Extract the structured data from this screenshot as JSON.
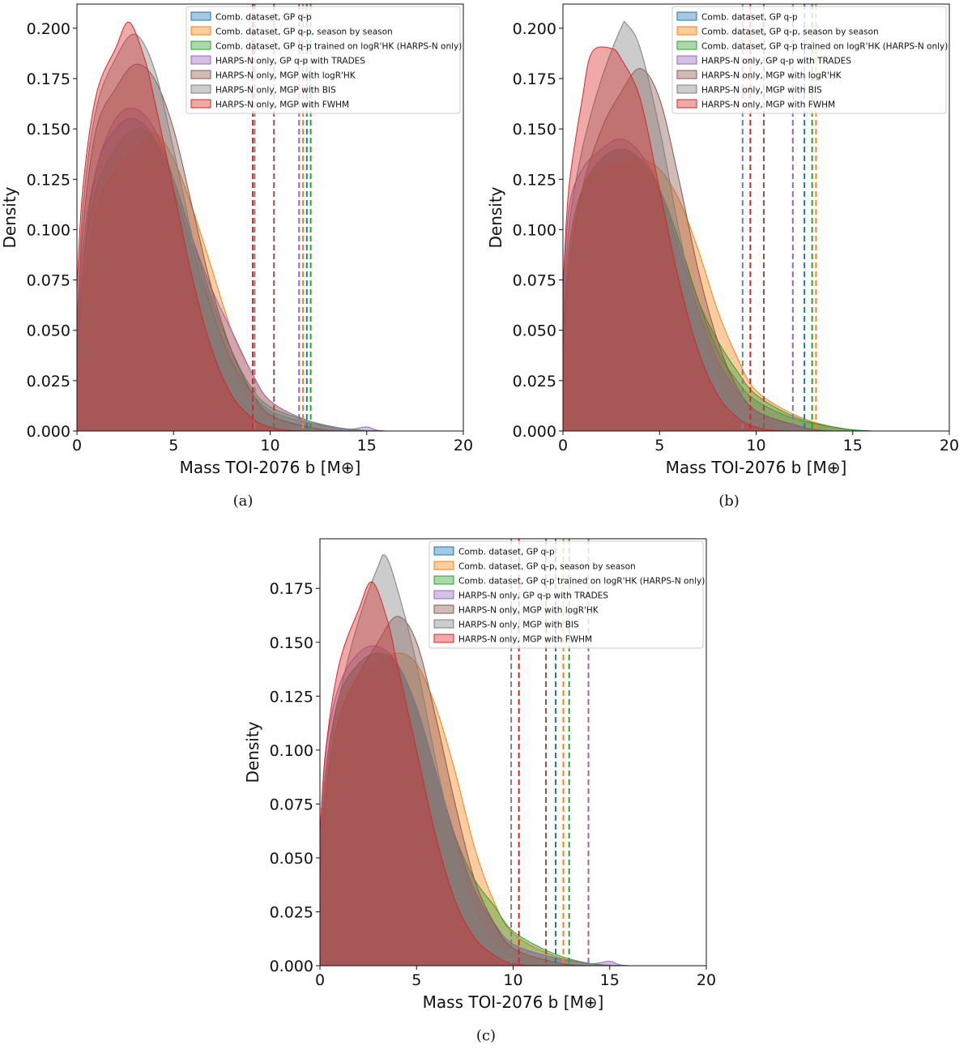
{
  "chart_data": [
    {
      "type": "area",
      "panel": "a",
      "caption": "(a)",
      "xlabel": "Mass TOI-2076 b [M⊕]",
      "ylabel": "Density",
      "xlim": [
        0,
        20
      ],
      "ylim": [
        0,
        0.212
      ],
      "xticks": [
        "0",
        "5",
        "10",
        "15",
        "20"
      ],
      "yticks": [
        "0.000",
        "0.025",
        "0.050",
        "0.075",
        "0.100",
        "0.125",
        "0.150",
        "0.175",
        "0.200"
      ],
      "legend_position": "top-right",
      "series": [
        {
          "name": "Comb. dataset, GP q-p",
          "color": "#1f77b4",
          "x": [
            0,
            0.3,
            1,
            2,
            3,
            4,
            5,
            6,
            7,
            8,
            9,
            10,
            12,
            14,
            16,
            20
          ],
          "values": [
            0.03,
            0.08,
            0.13,
            0.15,
            0.155,
            0.145,
            0.12,
            0.09,
            0.06,
            0.035,
            0.02,
            0.01,
            0.004,
            0.001,
            0.0,
            0.0
          ],
          "vline": 11.9
        },
        {
          "name": "Comb. dataset, GP q-p, season by season",
          "color": "#ff7f0e",
          "x": [
            0,
            0.3,
            1,
            2,
            3,
            4,
            5,
            6,
            7,
            8,
            9,
            10,
            12,
            14,
            16,
            20
          ],
          "values": [
            0.03,
            0.07,
            0.11,
            0.13,
            0.14,
            0.148,
            0.135,
            0.11,
            0.08,
            0.05,
            0.03,
            0.015,
            0.005,
            0.001,
            0.0,
            0.0
          ],
          "vline": 11.7
        },
        {
          "name": "Comb. dataset, GP q-p trained on logR'HK (HARPS-N only)",
          "color": "#2ca02c",
          "x": [
            0,
            0.3,
            1,
            2,
            3,
            4,
            5,
            6,
            7,
            8,
            9,
            10,
            12,
            14,
            16,
            20
          ],
          "values": [
            0.03,
            0.08,
            0.12,
            0.14,
            0.15,
            0.145,
            0.125,
            0.095,
            0.065,
            0.04,
            0.022,
            0.012,
            0.005,
            0.001,
            0.0,
            0.0
          ],
          "vline": 12.1
        },
        {
          "name": "HARPS-N only, GP q-p with TRADES",
          "color": "#9467bd",
          "x": [
            0,
            0.3,
            1,
            2,
            3,
            4,
            5,
            6,
            7,
            8,
            9,
            10,
            12,
            14,
            15,
            16,
            20
          ],
          "values": [
            0.04,
            0.09,
            0.13,
            0.155,
            0.16,
            0.15,
            0.125,
            0.095,
            0.07,
            0.05,
            0.03,
            0.015,
            0.005,
            0.001,
            0.002,
            0.0,
            0.0
          ],
          "vline": 11.5
        },
        {
          "name": "HARPS-N only, MGP with logR'HK",
          "color": "#8c564b",
          "x": [
            0,
            0.3,
            1,
            2,
            3,
            4,
            5,
            6,
            7,
            8,
            9,
            10,
            12,
            14,
            20
          ],
          "values": [
            0.05,
            0.1,
            0.15,
            0.17,
            0.182,
            0.175,
            0.15,
            0.11,
            0.07,
            0.04,
            0.02,
            0.008,
            0.002,
            0.0,
            0.0
          ],
          "vline": 10.2
        },
        {
          "name": "HARPS-N only, MGP with BIS",
          "color": "#7f7f7f",
          "x": [
            0,
            0.3,
            1,
            2,
            3,
            4,
            5,
            6,
            7,
            8,
            9,
            10,
            12,
            14,
            20
          ],
          "values": [
            0.05,
            0.11,
            0.16,
            0.185,
            0.197,
            0.18,
            0.14,
            0.095,
            0.055,
            0.03,
            0.013,
            0.005,
            0.001,
            0.0,
            0.0
          ],
          "vline": 9.2
        },
        {
          "name": "HARPS-N only, MGP with FWHM",
          "color": "#d62728",
          "x": [
            0,
            0.3,
            1,
            2,
            2.7,
            3.5,
            4,
            5,
            6,
            7,
            8,
            9,
            10,
            12,
            20
          ],
          "values": [
            0.07,
            0.12,
            0.167,
            0.19,
            0.203,
            0.185,
            0.165,
            0.12,
            0.075,
            0.04,
            0.018,
            0.007,
            0.002,
            0.0,
            0.0
          ],
          "vline": 9.1
        }
      ]
    },
    {
      "type": "area",
      "panel": "b",
      "caption": "(b)",
      "xlabel": "Mass TOI-2076 b [M⊕]",
      "ylabel": "Density",
      "xlim": [
        0,
        20
      ],
      "ylim": [
        0,
        0.212
      ],
      "xticks": [
        "0",
        "5",
        "10",
        "15",
        "20"
      ],
      "yticks": [
        "0.000",
        "0.025",
        "0.050",
        "0.075",
        "0.100",
        "0.125",
        "0.150",
        "0.175",
        "0.200"
      ],
      "legend_position": "top-right",
      "series": [
        {
          "name": "Comb. dataset, GP q-p",
          "color": "#1f77b4",
          "x": [
            0,
            0.3,
            1,
            2,
            3,
            4,
            5,
            6,
            7,
            8,
            9,
            10,
            12,
            14,
            16,
            20
          ],
          "values": [
            0.04,
            0.09,
            0.12,
            0.135,
            0.14,
            0.135,
            0.12,
            0.095,
            0.065,
            0.04,
            0.025,
            0.015,
            0.006,
            0.002,
            0.0,
            0.0
          ],
          "vline": 12.5
        },
        {
          "name": "Comb. dataset, GP q-p, season by season",
          "color": "#ff7f0e",
          "x": [
            0,
            0.3,
            1,
            2,
            3,
            4,
            5,
            6,
            7,
            8,
            9,
            10,
            12,
            14,
            16,
            20
          ],
          "values": [
            0.04,
            0.09,
            0.12,
            0.13,
            0.133,
            0.135,
            0.13,
            0.115,
            0.09,
            0.06,
            0.037,
            0.02,
            0.008,
            0.002,
            0.0,
            0.0
          ],
          "vline": 13.1
        },
        {
          "name": "Comb. dataset, GP q-p trained on logR'HK (HARPS-N only)",
          "color": "#2ca02c",
          "x": [
            0,
            0.3,
            1,
            2,
            3,
            4,
            5,
            6,
            7,
            8,
            9,
            10,
            12,
            14,
            16,
            20
          ],
          "values": [
            0.04,
            0.09,
            0.12,
            0.135,
            0.14,
            0.135,
            0.12,
            0.095,
            0.065,
            0.045,
            0.03,
            0.018,
            0.007,
            0.002,
            0.0,
            0.0
          ],
          "vline": 12.9
        },
        {
          "name": "HARPS-N only, GP q-p with TRADES",
          "color": "#9467bd",
          "x": [
            0,
            0.3,
            1,
            2,
            3,
            4,
            5,
            6,
            7,
            8,
            9,
            10,
            12,
            14,
            20
          ],
          "values": [
            0.06,
            0.11,
            0.13,
            0.14,
            0.145,
            0.138,
            0.12,
            0.09,
            0.06,
            0.035,
            0.02,
            0.01,
            0.003,
            0.0,
            0.0
          ],
          "vline": 11.9
        },
        {
          "name": "HARPS-N only, MGP with logR'HK",
          "color": "#8c564b",
          "x": [
            0,
            0.3,
            1,
            2,
            3,
            4,
            5,
            6,
            7,
            8,
            9,
            10,
            12,
            14,
            20
          ],
          "values": [
            0.04,
            0.08,
            0.12,
            0.15,
            0.168,
            0.18,
            0.165,
            0.125,
            0.08,
            0.045,
            0.022,
            0.01,
            0.003,
            0.0,
            0.0
          ],
          "vline": 10.4
        },
        {
          "name": "HARPS-N only, MGP with BIS",
          "color": "#7f7f7f",
          "x": [
            0,
            0.3,
            1,
            2,
            3,
            3.3,
            4,
            5,
            6,
            7,
            8,
            9,
            10,
            12,
            20
          ],
          "values": [
            0.05,
            0.1,
            0.14,
            0.175,
            0.2,
            0.202,
            0.19,
            0.15,
            0.1,
            0.055,
            0.025,
            0.01,
            0.003,
            0.0,
            0.0
          ],
          "vline": 9.3
        },
        {
          "name": "HARPS-N only, MGP with FWHM",
          "color": "#d62728",
          "x": [
            0,
            0.3,
            1,
            1.5,
            2.5,
            3,
            4,
            5,
            6,
            7,
            8,
            9,
            10,
            12,
            20
          ],
          "values": [
            0.07,
            0.12,
            0.165,
            0.188,
            0.19,
            0.185,
            0.165,
            0.12,
            0.075,
            0.04,
            0.018,
            0.007,
            0.002,
            0.0,
            0.0
          ],
          "vline": 9.7
        }
      ]
    },
    {
      "type": "area",
      "panel": "c",
      "caption": "(c)",
      "xlabel": "Mass TOI-2076 b [M⊕]",
      "ylabel": "Density",
      "xlim": [
        0,
        20
      ],
      "ylim": [
        0,
        0.198
      ],
      "xticks": [
        "0",
        "5",
        "10",
        "15",
        "20"
      ],
      "yticks": [
        "0.000",
        "0.025",
        "0.050",
        "0.075",
        "0.100",
        "0.125",
        "0.150",
        "0.175"
      ],
      "legend_position": "top-right",
      "series": [
        {
          "name": "Comb. dataset, GP q-p",
          "color": "#1f77b4",
          "x": [
            0,
            0.3,
            1,
            2,
            3,
            4,
            5,
            6,
            7,
            8,
            9,
            10,
            12,
            14,
            16,
            20
          ],
          "values": [
            0.05,
            0.09,
            0.125,
            0.14,
            0.145,
            0.14,
            0.12,
            0.09,
            0.06,
            0.035,
            0.02,
            0.01,
            0.004,
            0.001,
            0.0,
            0.0
          ],
          "vline": 12.2
        },
        {
          "name": "Comb. dataset, GP q-p, season by season",
          "color": "#ff7f0e",
          "x": [
            0,
            0.3,
            1,
            2,
            3,
            4,
            5,
            6,
            7,
            8,
            9,
            10,
            12,
            14,
            16,
            20
          ],
          "values": [
            0.05,
            0.09,
            0.12,
            0.135,
            0.14,
            0.145,
            0.14,
            0.12,
            0.09,
            0.055,
            0.03,
            0.015,
            0.005,
            0.001,
            0.0,
            0.0
          ],
          "vline": 12.6
        },
        {
          "name": "Comb. dataset, GP q-p trained on logR'HK (HARPS-N only)",
          "color": "#2ca02c",
          "x": [
            0,
            0.3,
            1,
            2,
            3,
            4,
            5,
            6,
            7,
            8,
            9,
            10,
            12,
            14,
            16,
            20
          ],
          "values": [
            0.05,
            0.09,
            0.125,
            0.14,
            0.145,
            0.14,
            0.12,
            0.09,
            0.06,
            0.04,
            0.028,
            0.016,
            0.006,
            0.001,
            0.0,
            0.0
          ],
          "vline": 12.9
        },
        {
          "name": "HARPS-N only, GP q-p with TRADES",
          "color": "#9467bd",
          "x": [
            0,
            0.3,
            1,
            2,
            3,
            4,
            5,
            6,
            7,
            8,
            9,
            10,
            12,
            14,
            15,
            16,
            20
          ],
          "values": [
            0.06,
            0.1,
            0.13,
            0.145,
            0.148,
            0.14,
            0.12,
            0.09,
            0.06,
            0.035,
            0.02,
            0.01,
            0.004,
            0.001,
            0.002,
            0.0,
            0.0
          ],
          "vline": 13.9
        },
        {
          "name": "HARPS-N only, MGP with logR'HK",
          "color": "#8c564b",
          "x": [
            0,
            0.3,
            1,
            2,
            3,
            4,
            5,
            6,
            7,
            8,
            9,
            10,
            12,
            14,
            20
          ],
          "values": [
            0.04,
            0.08,
            0.115,
            0.135,
            0.15,
            0.162,
            0.15,
            0.115,
            0.075,
            0.04,
            0.02,
            0.008,
            0.002,
            0.0,
            0.0
          ],
          "vline": 11.7
        },
        {
          "name": "HARPS-N only, MGP with BIS",
          "color": "#7f7f7f",
          "x": [
            0,
            0.3,
            1,
            2,
            3,
            3.4,
            4,
            5,
            6,
            7,
            8,
            9,
            10,
            12,
            20
          ],
          "values": [
            0.05,
            0.09,
            0.125,
            0.16,
            0.185,
            0.19,
            0.175,
            0.14,
            0.095,
            0.055,
            0.025,
            0.01,
            0.003,
            0.0,
            0.0
          ],
          "vline": 9.9
        },
        {
          "name": "HARPS-N only, MGP with FWHM",
          "color": "#d62728",
          "x": [
            0,
            0.3,
            1,
            2,
            2.7,
            3.5,
            4,
            5,
            6,
            7,
            8,
            9,
            10,
            12,
            20
          ],
          "values": [
            0.06,
            0.1,
            0.14,
            0.165,
            0.178,
            0.16,
            0.14,
            0.1,
            0.06,
            0.03,
            0.013,
            0.005,
            0.001,
            0.0,
            0.0
          ],
          "vline": 10.3
        }
      ]
    }
  ]
}
